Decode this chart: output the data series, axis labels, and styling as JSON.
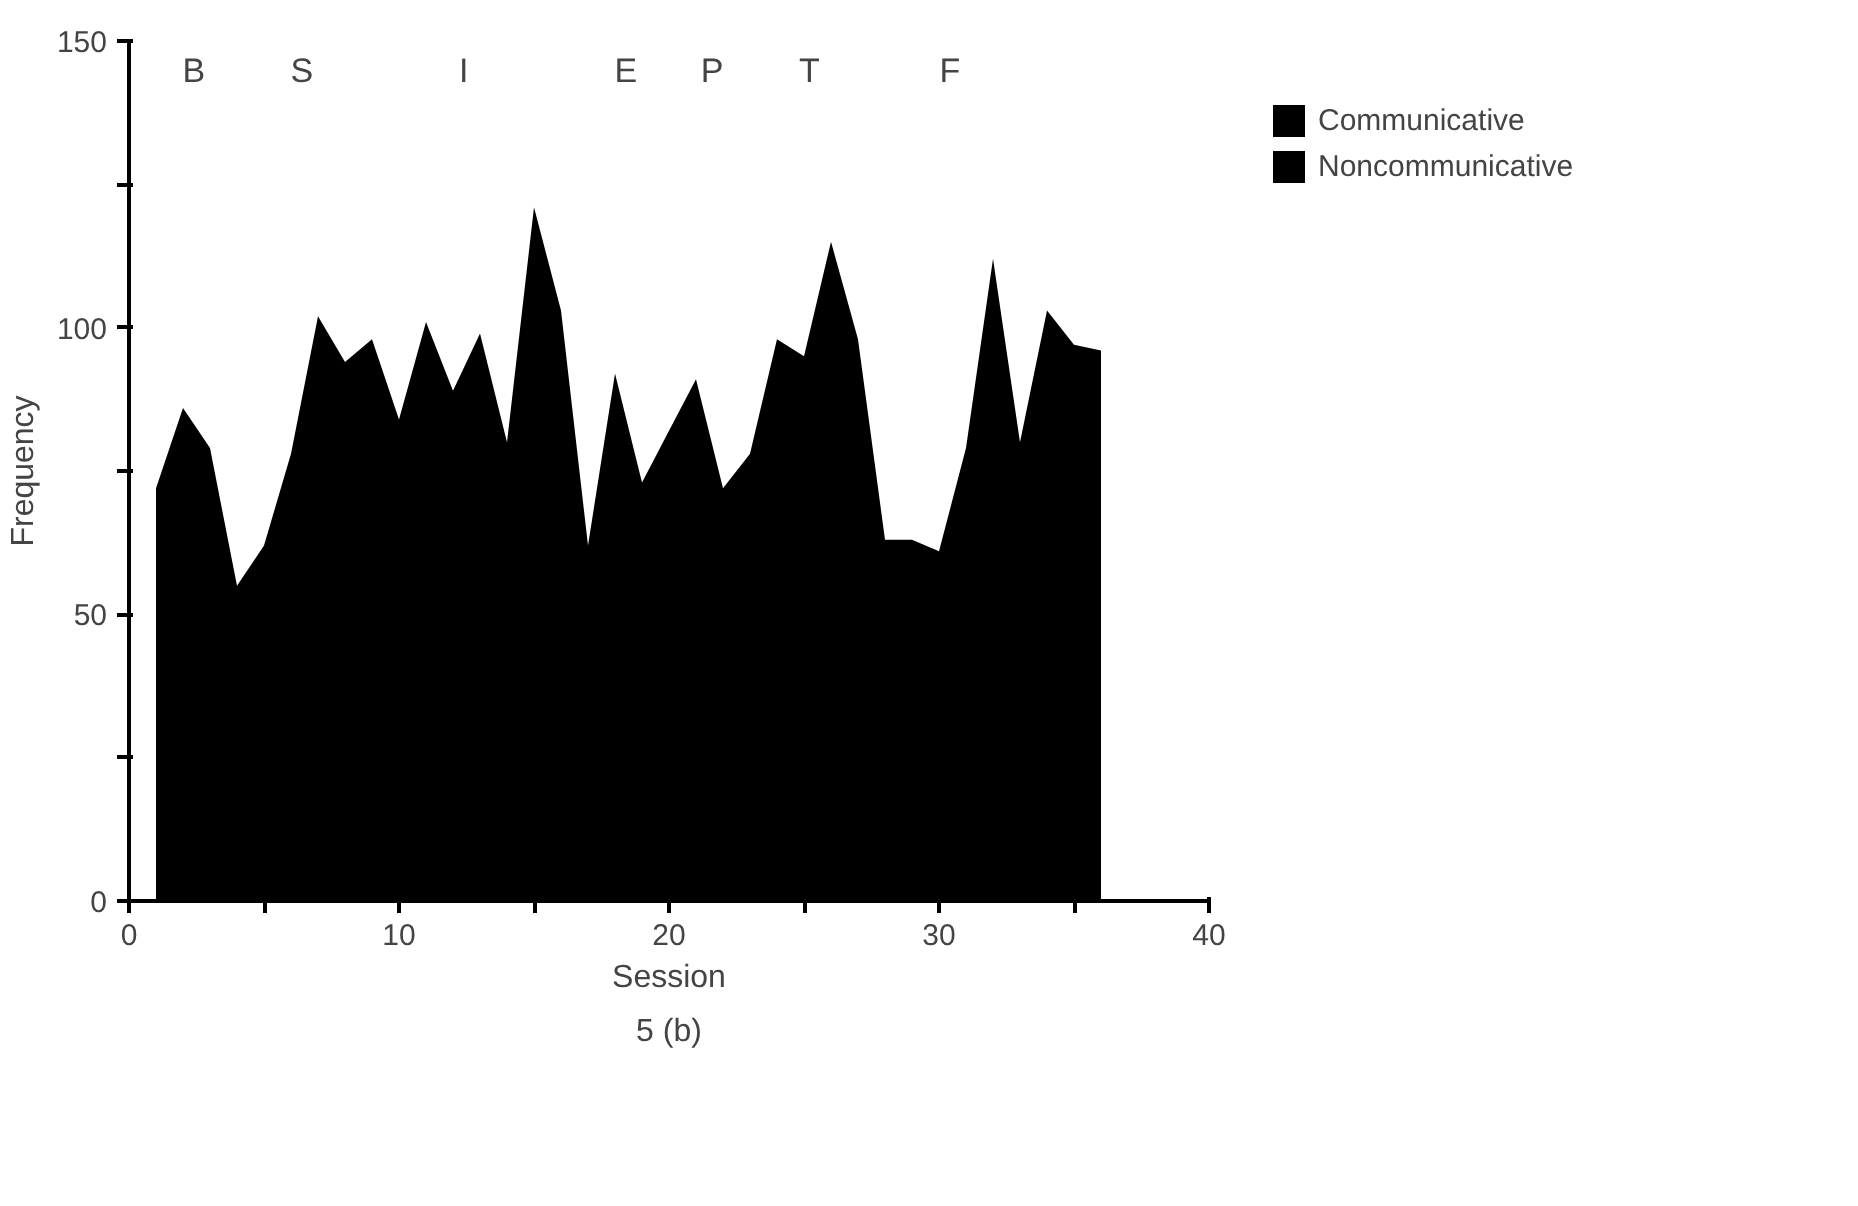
{
  "chart_data": {
    "type": "area",
    "xlabel": "Session",
    "ylabel": "Frequency",
    "x": [
      1,
      2,
      3,
      4,
      5,
      6,
      7,
      8,
      9,
      10,
      11,
      12,
      13,
      14,
      15,
      16,
      17,
      18,
      19,
      20,
      21,
      22,
      23,
      24,
      25,
      26,
      27,
      28,
      29,
      30,
      31,
      32,
      33,
      34,
      35,
      36
    ],
    "series": [
      {
        "name": "Communicative",
        "color": "#000000",
        "values": [
          72,
          86,
          79,
          55,
          62,
          78,
          102,
          94,
          98,
          84,
          101,
          89,
          99,
          80,
          121,
          103,
          62,
          92,
          73,
          82,
          91,
          72,
          78,
          98,
          95,
          115,
          98,
          63,
          63,
          61,
          79,
          112,
          80,
          103,
          97,
          96
        ]
      },
      {
        "name": "Noncommunicative",
        "color": "#000000",
        "values": [
          null,
          null,
          null,
          null,
          null,
          null,
          null,
          null,
          null,
          null,
          null,
          null,
          null,
          null,
          null,
          null,
          null,
          null,
          null,
          null,
          null,
          null,
          null,
          null,
          null,
          null,
          null,
          null,
          null,
          null,
          null,
          null,
          null,
          null,
          null,
          null
        ]
      }
    ],
    "xlim": [
      0,
      40
    ],
    "ylim": [
      0,
      150
    ],
    "xticks": [
      0,
      {
        "value": 5,
        "label": null
      },
      10,
      {
        "value": 15,
        "label": null
      },
      20,
      {
        "value": 25,
        "label": null
      },
      30,
      {
        "value": 35,
        "label": null
      },
      40
    ],
    "yticks": [
      0,
      {
        "value": 25,
        "label": null
      },
      50,
      {
        "value": 75,
        "label": null
      },
      100,
      {
        "value": 125,
        "label": null
      },
      150
    ],
    "grid": false,
    "legend": "top right",
    "annotations": [
      "B",
      "S",
      "I",
      "E",
      "P",
      "T",
      "F",
      "5 (b)"
    ]
  }
}
